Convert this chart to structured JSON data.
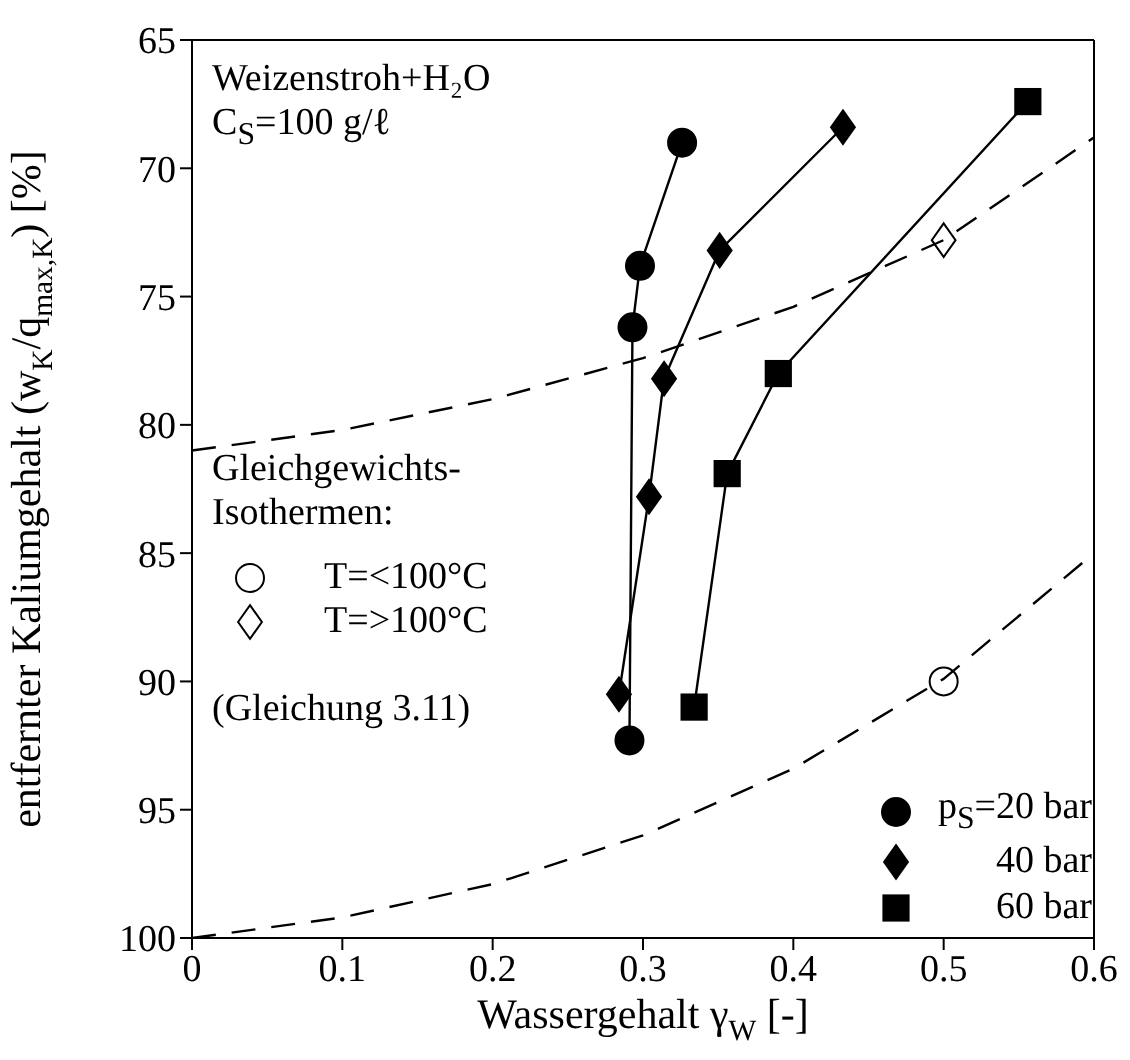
{
  "chart_data": {
    "type": "line",
    "xlabel": "Wassergehalt γ$_{W}$ [-]",
    "ylabel": "entfernter Kaliumgehalt (w$_{K}$/q$_{max,K}$) [%]",
    "annotations": [
      "Weizenstroh+H₂O",
      "C$_{S}$=100 g/ℓ",
      "Gleichgewichts-Isothermen:",
      "(Gleichung 3.11)"
    ],
    "xlim": [
      0,
      0.6
    ],
    "xticks": [
      0,
      0.1,
      0.2,
      0.3,
      0.4,
      0.5,
      0.6
    ],
    "ylim": [
      100,
      65
    ],
    "yticks": [
      65,
      70,
      75,
      80,
      85,
      90,
      95,
      100
    ],
    "legend": "bottom right",
    "series": [
      {
        "name": "p$_{S}$=20 bar",
        "color": "#000000",
        "marker": "circle",
        "line_style": "solid",
        "x": [
          0.291,
          0.293,
          0.298,
          0.326
        ],
        "values": [
          92.3,
          76.2,
          73.8,
          69.0
        ]
      },
      {
        "name": "40 bar",
        "color": "#000000",
        "marker": "diamond",
        "line_style": "solid",
        "x": [
          0.284,
          0.304,
          0.314,
          0.351,
          0.433
        ],
        "values": [
          90.5,
          82.8,
          78.2,
          73.2,
          68.4
        ]
      },
      {
        "name": "60 bar",
        "color": "#000000",
        "marker": "square",
        "line_style": "solid",
        "x": [
          0.334,
          0.356,
          0.39,
          0.556
        ],
        "values": [
          91.0,
          81.9,
          78.0,
          67.4
        ]
      },
      {
        "name": "T=<100°C",
        "type": "scatter",
        "color": "#000000",
        "marker": "circle",
        "x": [
          0.5
        ],
        "values": [
          90.0
        ]
      },
      {
        "name": "T=>100°C",
        "type": "scatter",
        "color": "#000000",
        "marker": "diamond",
        "x": [
          0.5
        ],
        "values": [
          72.8
        ]
      },
      {
        "color": "#000000",
        "marker": "none",
        "line_style": "dashed",
        "x": [
          0,
          0.1,
          0.2,
          0.3,
          0.4,
          0.5,
          0.6
        ],
        "values": [
          81.0,
          80.2,
          79.0,
          77.4,
          75.4,
          72.8,
          68.8
        ]
      },
      {
        "color": "#000000",
        "marker": "none",
        "line_style": "dashed",
        "x": [
          0,
          0.1,
          0.2,
          0.3,
          0.4,
          0.5,
          0.6
        ],
        "values": [
          100,
          99.2,
          97.9,
          96.0,
          93.4,
          89.9,
          85.0
        ]
      }
    ]
  }
}
